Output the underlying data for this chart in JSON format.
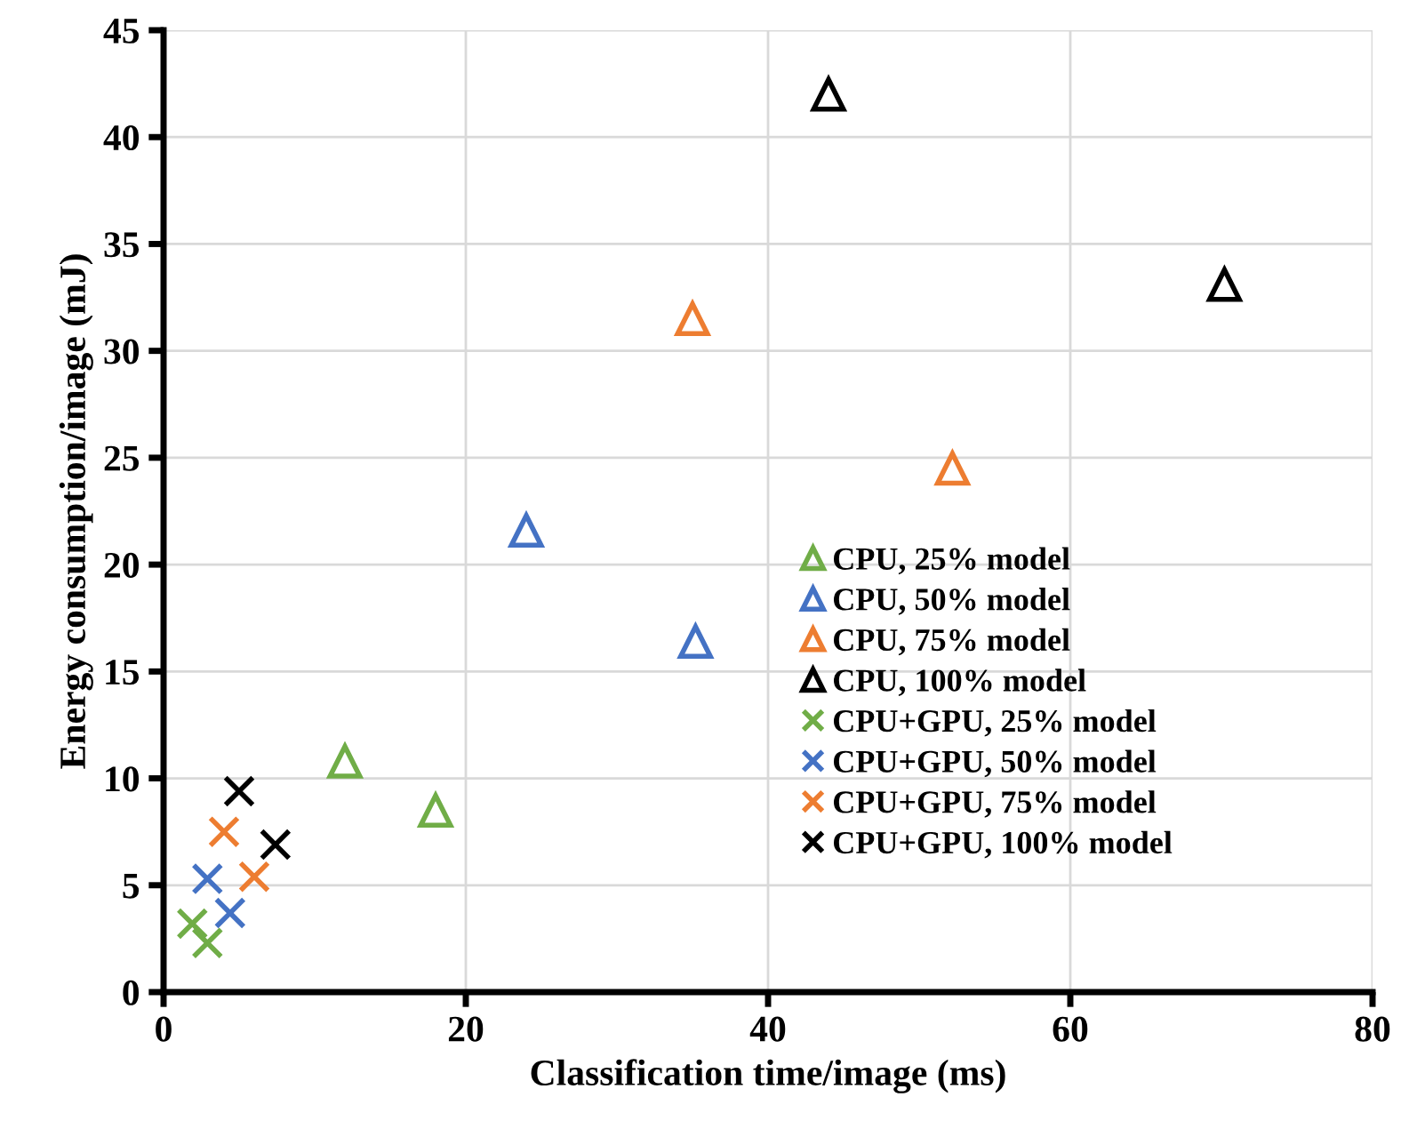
{
  "chart_data": {
    "type": "scatter",
    "xlabel": "Classification time/image (ms)",
    "ylabel": "Energy consumption/image (mJ)",
    "xlim": [
      0,
      80
    ],
    "ylim": [
      0,
      45
    ],
    "xticks": [
      0,
      20,
      40,
      60,
      80
    ],
    "yticks": [
      0,
      5,
      10,
      15,
      20,
      25,
      30,
      35,
      40,
      45
    ],
    "grid": true,
    "legend": "right",
    "series": [
      {
        "name": "CPU, 25% model",
        "color": "#70ad47",
        "marker": "triangle",
        "x": [
          12,
          18
        ],
        "values": [
          10.8,
          8.5
        ]
      },
      {
        "name": "CPU, 50% model",
        "color": "#4472c4",
        "marker": "triangle",
        "x": [
          24,
          35.2
        ],
        "values": [
          21.6,
          16.4
        ]
      },
      {
        "name": "CPU, 75% model",
        "color": "#ed7d31",
        "marker": "triangle",
        "x": [
          35,
          52.2
        ],
        "values": [
          31.5,
          24.5
        ]
      },
      {
        "name": "CPU, 100% model",
        "color": "#000000",
        "marker": "triangle",
        "x": [
          44,
          70.2
        ],
        "values": [
          42,
          33.1
        ]
      },
      {
        "name": "CPU+GPU, 25% model",
        "color": "#70ad47",
        "marker": "cross",
        "x": [
          1.9,
          2.9
        ],
        "values": [
          3.2,
          2.3
        ]
      },
      {
        "name": "CPU+GPU, 50% model",
        "color": "#4472c4",
        "marker": "cross",
        "x": [
          2.9,
          4.4
        ],
        "values": [
          5.3,
          3.7
        ]
      },
      {
        "name": "CPU+GPU, 75% model",
        "color": "#ed7d31",
        "marker": "cross",
        "x": [
          4,
          6
        ],
        "values": [
          7.5,
          5.4
        ]
      },
      {
        "name": "CPU+GPU, 100% model",
        "color": "#000000",
        "marker": "cross",
        "x": [
          5,
          7.4
        ],
        "values": [
          9.4,
          6.9
        ]
      }
    ]
  }
}
